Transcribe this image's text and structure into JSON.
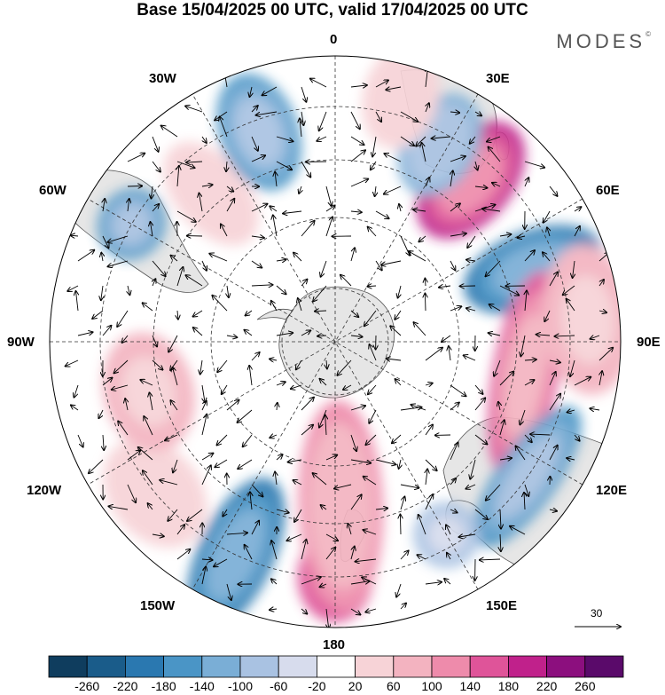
{
  "title": "Base 15/04/2025 00 UTC, valid 17/04/2025 00 UTC",
  "brand": "MODES",
  "brand_mark": "©",
  "lon_labels": {
    "l0": "0",
    "l30e": "30E",
    "l60e": "60E",
    "l90e": "90E",
    "l120e": "120E",
    "l150e": "150E",
    "l180": "180",
    "l150w": "150W",
    "l120w": "120W",
    "l90w": "90W",
    "l60w": "60W",
    "l30w": "30W"
  },
  "vector_reference": "30",
  "colorbar": {
    "ticks": [
      "-260",
      "-220",
      "-180",
      "-140",
      "-100",
      "-60",
      "-20",
      "20",
      "60",
      "100",
      "140",
      "180",
      "220",
      "260"
    ],
    "colors": [
      "#0f3d5e",
      "#1a5c8a",
      "#2a78b0",
      "#4a95c6",
      "#7aaed6",
      "#a9c2e2",
      "#d7dced",
      "#ffffff",
      "#f7d3d7",
      "#f3b3c0",
      "#ee8bab",
      "#df5499",
      "#c0218b",
      "#8c0f7e",
      "#5a0a6a"
    ]
  },
  "map": {
    "projection": "south-polar-stereographic",
    "land_color": "#e6e6e6",
    "anomalies": [
      {
        "lon": 40,
        "lat": -52,
        "value": 220,
        "rx": 28,
        "ry": 45
      },
      {
        "lon": 70,
        "lat": -52,
        "value": -180,
        "rx": 26,
        "ry": 48
      },
      {
        "lon": 28,
        "lat": -50,
        "value": -120,
        "rx": 25,
        "ry": 36
      },
      {
        "lon": 100,
        "lat": -55,
        "value": 160,
        "rx": 70,
        "ry": 22
      },
      {
        "lon": 85,
        "lat": -45,
        "value": 80,
        "rx": 50,
        "ry": 30
      },
      {
        "lon": 125,
        "lat": -48,
        "value": -160,
        "rx": 55,
        "ry": 20
      },
      {
        "lon": 150,
        "lat": -50,
        "value": -80,
        "rx": 22,
        "ry": 22
      },
      {
        "lon": 180,
        "lat": -48,
        "value": 180,
        "rx": 25,
        "ry": 30
      },
      {
        "lon": 178,
        "lat": -60,
        "value": 120,
        "rx": 28,
        "ry": 70
      },
      {
        "lon": 205,
        "lat": -48,
        "value": -200,
        "rx": 25,
        "ry": 55
      },
      {
        "lon": 230,
        "lat": -48,
        "value": 60,
        "rx": 40,
        "ry": 30
      },
      {
        "lon": 255,
        "lat": -55,
        "value": 80,
        "rx": 40,
        "ry": 30
      },
      {
        "lon": 300,
        "lat": -48,
        "value": -160,
        "rx": 24,
        "ry": 22
      },
      {
        "lon": 320,
        "lat": -55,
        "value": 60,
        "rx": 24,
        "ry": 40
      },
      {
        "lon": 340,
        "lat": -50,
        "value": -160,
        "rx": 26,
        "ry": 40
      },
      {
        "lon": 15,
        "lat": -45,
        "value": 60,
        "rx": 25,
        "ry": 35
      }
    ]
  }
}
